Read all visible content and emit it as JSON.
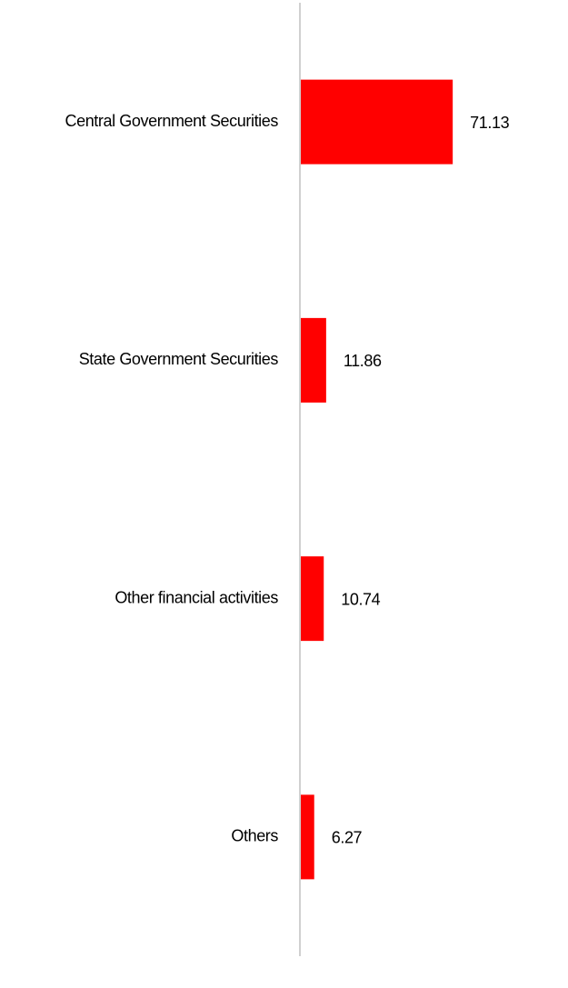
{
  "chart_data": {
    "type": "bar",
    "orientation": "horizontal",
    "categories": [
      "Central Government Securities",
      "State Government Securities",
      "Other financial activities",
      "Others"
    ],
    "values": [
      71.13,
      11.86,
      10.74,
      6.27
    ],
    "color": "#ff0000",
    "xlim": [
      0,
      100
    ]
  }
}
